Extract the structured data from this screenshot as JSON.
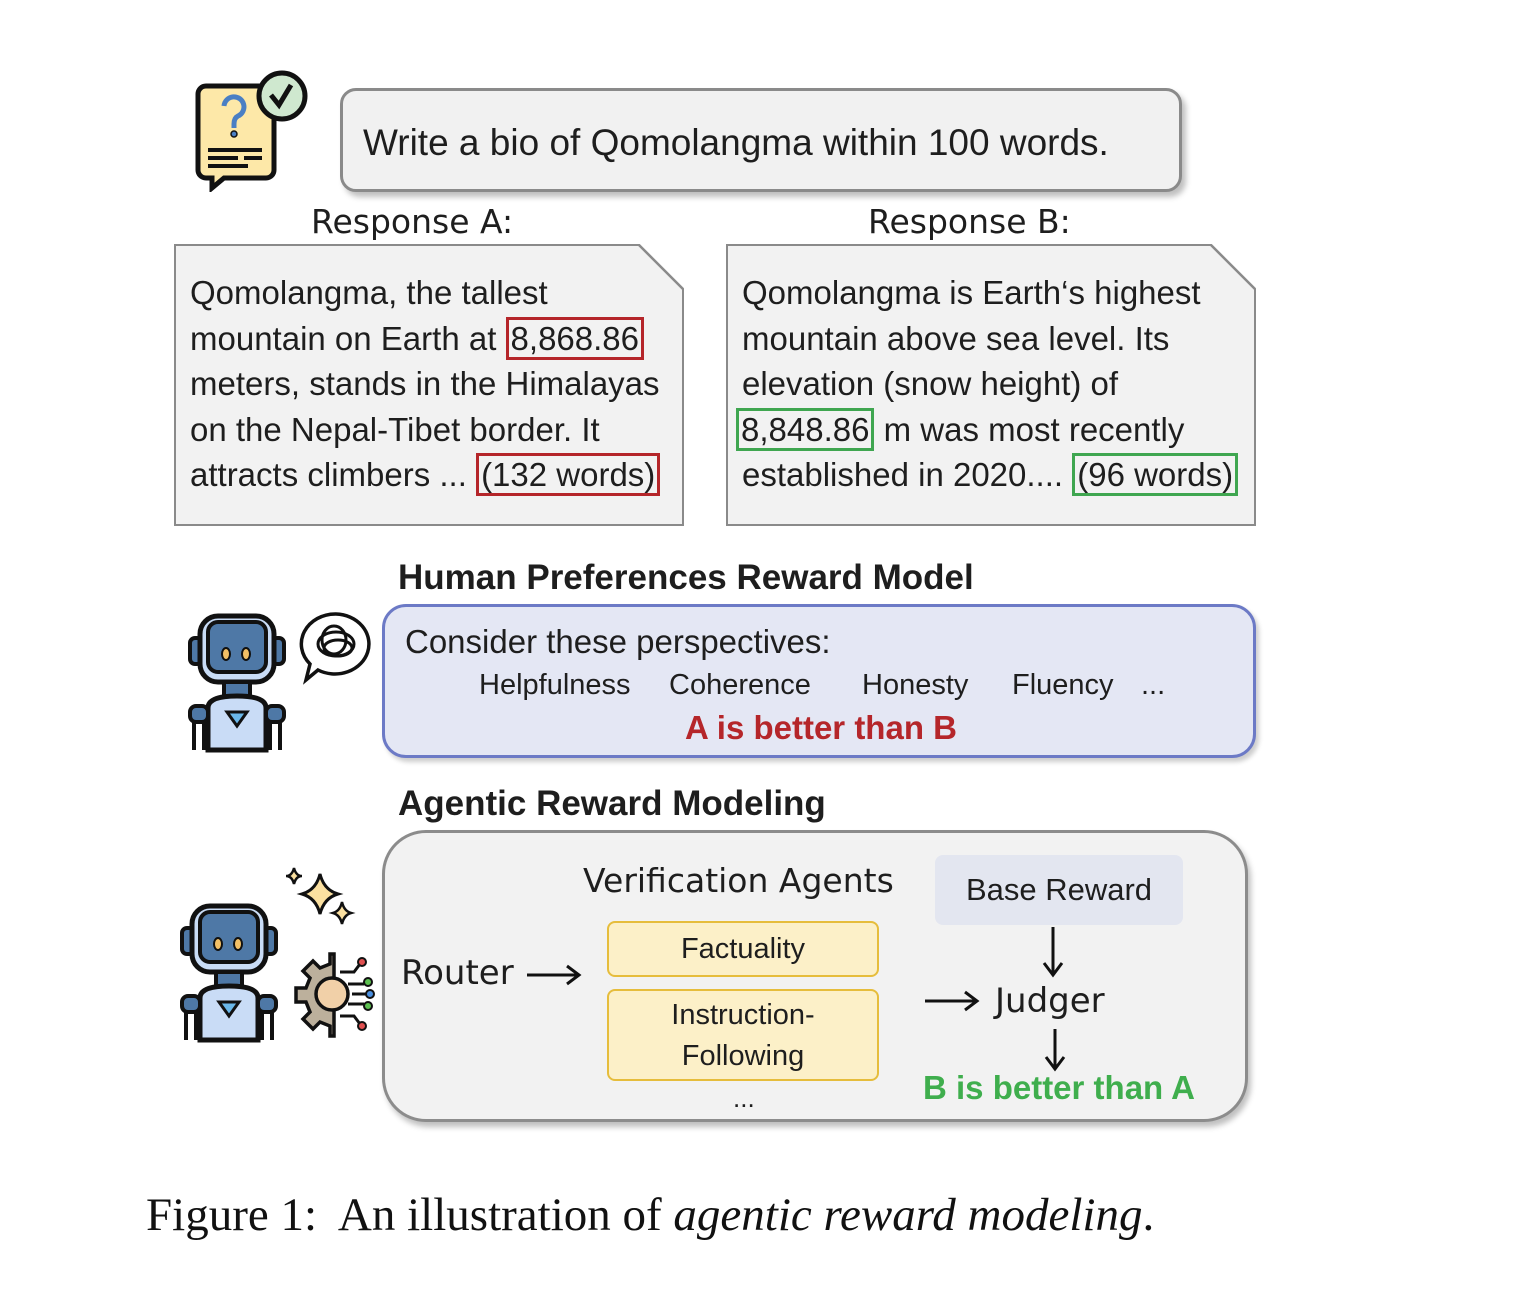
{
  "prompt": {
    "text": "Write a bio of Qomolangma within 100 words."
  },
  "response_a": {
    "label": "Response A:",
    "line1": "Qomolangma, the tallest",
    "line2_pre": "mountain on Earth at",
    "line2_hl": "8,868.86",
    "line3": "meters, stands in the Himalayas",
    "line4": "on the Nepal-Tibet border. It",
    "line5_pre": "attracts climbers ...",
    "line5_hl": "(132 words)"
  },
  "response_b": {
    "label": "Response B:",
    "line1": "Qomolangma is Earth‘s highest",
    "line2": "mountain above sea level. Its",
    "line3": "elevation (snow height) of",
    "line4_hl": "8,848.86",
    "line4_post": "m was most recently",
    "line5_pre": "established in 2020....",
    "line5_hl": "(96 words)"
  },
  "hprm": {
    "title": "Human Preferences Reward Model",
    "consider": "Consider these perspectives:",
    "perspectives": [
      "Helpfulness",
      "Coherence",
      "Honesty",
      "Fluency",
      "..."
    ],
    "verdict": "A is better than B",
    "verdict_color": "#b5262a"
  },
  "arm": {
    "title": "Agentic Reward Modeling",
    "verification_agents": "Verification Agents",
    "router": "Router",
    "agents": [
      "Factuality",
      "Instruction-\nFollowing"
    ],
    "ellipsis": "...",
    "base_reward": "Base Reward",
    "judger": "Judger",
    "verdict": "B is better than A",
    "verdict_color": "#3fae4d"
  },
  "caption": {
    "prefix": "Figure 1:  An illustration of ",
    "italic": "agentic reward modeling",
    "suffix": "."
  },
  "icons": [
    "question-document-icon",
    "check-badge-icon",
    "robot-icon",
    "tangled-thought-bubble-icon",
    "sparkles-icon",
    "gear-circuit-icon",
    "arrow-right-icon",
    "arrow-down-icon"
  ]
}
